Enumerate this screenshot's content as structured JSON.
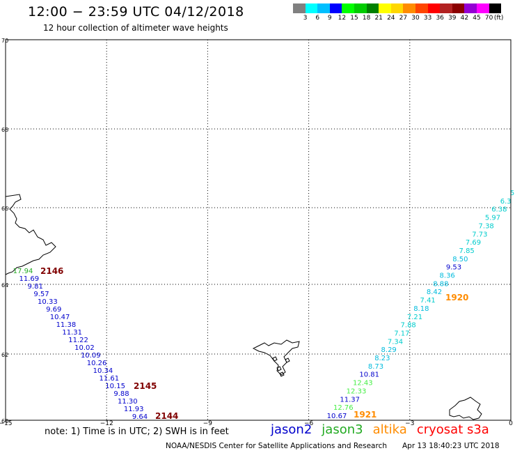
{
  "header": {
    "title": "12:00 − 23:59 UTC 04/12/2018",
    "subtitle": "12 hour collection of altimeter wave heights"
  },
  "colorbar": {
    "unit": "(ft)",
    "labels": [
      "3",
      "6",
      "9",
      "12",
      "15",
      "18",
      "21",
      "24",
      "27",
      "30",
      "33",
      "36",
      "39",
      "42",
      "45",
      "70"
    ],
    "colors": [
      "#808080",
      "#00ffff",
      "#00bfff",
      "#0000ff",
      "#00ff00",
      "#00cc00",
      "#008000",
      "#ffff00",
      "#ffd700",
      "#ff8c00",
      "#ff4500",
      "#ff0000",
      "#b22222",
      "#8b0000",
      "#9400d3",
      "#ff00ff",
      "#000000"
    ]
  },
  "map": {
    "lon_ticks": [
      -15,
      -12,
      -9,
      -6,
      -3,
      0
    ],
    "lat_ticks": [
      60,
      62,
      64,
      66,
      68,
      70
    ],
    "lon_labels": [
      "−15",
      "−12",
      "−9",
      "−6",
      "−3",
      "0"
    ],
    "lat_labels": [
      "60",
      "62",
      "64",
      "66",
      "68",
      "70"
    ],
    "grid": "dotted"
  },
  "tracks": [
    {
      "id": "jason2-2146",
      "satellite": "jason2",
      "pass_label": "2146",
      "label_color": "#800000",
      "points": [
        {
          "v": "17.94",
          "c": "#22aa22"
        },
        {
          "v": "11.69",
          "c": "#0000cc"
        },
        {
          "v": "9.81",
          "c": "#0000cc"
        },
        {
          "v": "9.57",
          "c": "#0000cc"
        },
        {
          "v": "10.33",
          "c": "#0000cc"
        },
        {
          "v": "9.69",
          "c": "#0000cc"
        },
        {
          "v": "10.47",
          "c": "#0000cc"
        },
        {
          "v": "11.38",
          "c": "#0000cc"
        },
        {
          "v": "11.31",
          "c": "#0000cc"
        },
        {
          "v": "11.22",
          "c": "#0000cc"
        },
        {
          "v": "10.02",
          "c": "#0000cc"
        },
        {
          "v": "10.09",
          "c": "#0000cc"
        },
        {
          "v": "10.26",
          "c": "#0000cc"
        },
        {
          "v": "10.34",
          "c": "#0000cc"
        },
        {
          "v": "11.61",
          "c": "#0000cc"
        },
        {
          "v": "10.15",
          "c": "#0000cc"
        },
        {
          "v": "9.88",
          "c": "#0000cc"
        },
        {
          "v": "11.30",
          "c": "#0000cc"
        },
        {
          "v": "11.93",
          "c": "#0000cc"
        },
        {
          "v": "9.64",
          "c": "#0000cc"
        }
      ],
      "extra_labels": [
        {
          "text": "2145",
          "color": "#800000"
        },
        {
          "text": "2144",
          "color": "#800000"
        }
      ]
    },
    {
      "id": "altika-1920",
      "satellite": "altika",
      "pass_label": "1920",
      "label_color": "#ff8c00",
      "points": [
        {
          "v": "5",
          "c": "#00cccc"
        },
        {
          "v": "6.3",
          "c": "#00cccc"
        },
        {
          "v": "6.38",
          "c": "#00cccc"
        },
        {
          "v": "5.97",
          "c": "#00cccc"
        },
        {
          "v": "7.38",
          "c": "#00cccc"
        },
        {
          "v": "7.73",
          "c": "#00cccc"
        },
        {
          "v": "7.69",
          "c": "#00cccc"
        },
        {
          "v": "7.85",
          "c": "#00cccc"
        },
        {
          "v": "8.50",
          "c": "#00bbdd"
        },
        {
          "v": "9.53",
          "c": "#0000cc"
        },
        {
          "v": "8.36",
          "c": "#00bbdd"
        },
        {
          "v": "8.88",
          "c": "#00bbdd"
        },
        {
          "v": "8.42",
          "c": "#00bbdd"
        },
        {
          "v": "7.41",
          "c": "#00cccc"
        },
        {
          "v": "8.18",
          "c": "#00bbdd"
        },
        {
          "v": "7.21",
          "c": "#00cccc"
        },
        {
          "v": "7.88",
          "c": "#00cccc"
        },
        {
          "v": "7.17",
          "c": "#00cccc"
        },
        {
          "v": "7.34",
          "c": "#00cccc"
        },
        {
          "v": "8.29",
          "c": "#00bbdd"
        },
        {
          "v": "8.23",
          "c": "#00bbdd"
        },
        {
          "v": "8.73",
          "c": "#00bbdd"
        },
        {
          "v": "10.81",
          "c": "#0000cc"
        },
        {
          "v": "12.43",
          "c": "#44ee44"
        },
        {
          "v": "12.33",
          "c": "#44ee44"
        },
        {
          "v": "11.37",
          "c": "#0000cc"
        },
        {
          "v": "12.76",
          "c": "#44ee44"
        },
        {
          "v": "10.67",
          "c": "#0000cc"
        }
      ],
      "extra_labels": [
        {
          "text": "1921",
          "color": "#ff8c00"
        }
      ]
    }
  ],
  "note": "note:  1) Time is in UTC;  2) SWH is in feet",
  "legend": [
    {
      "name": "jason2",
      "color": "#0000cc"
    },
    {
      "name": "jason3",
      "color": "#22aa22"
    },
    {
      "name": "altika",
      "color": "#ff8c00"
    },
    {
      "name": "cryosat s3a",
      "color": "#ff0000"
    }
  ],
  "footer": {
    "left": "NOAA/NESDIS Center for Satellite Applications and Research",
    "right": "Apr 13 18:40:23 UTC 2018"
  }
}
